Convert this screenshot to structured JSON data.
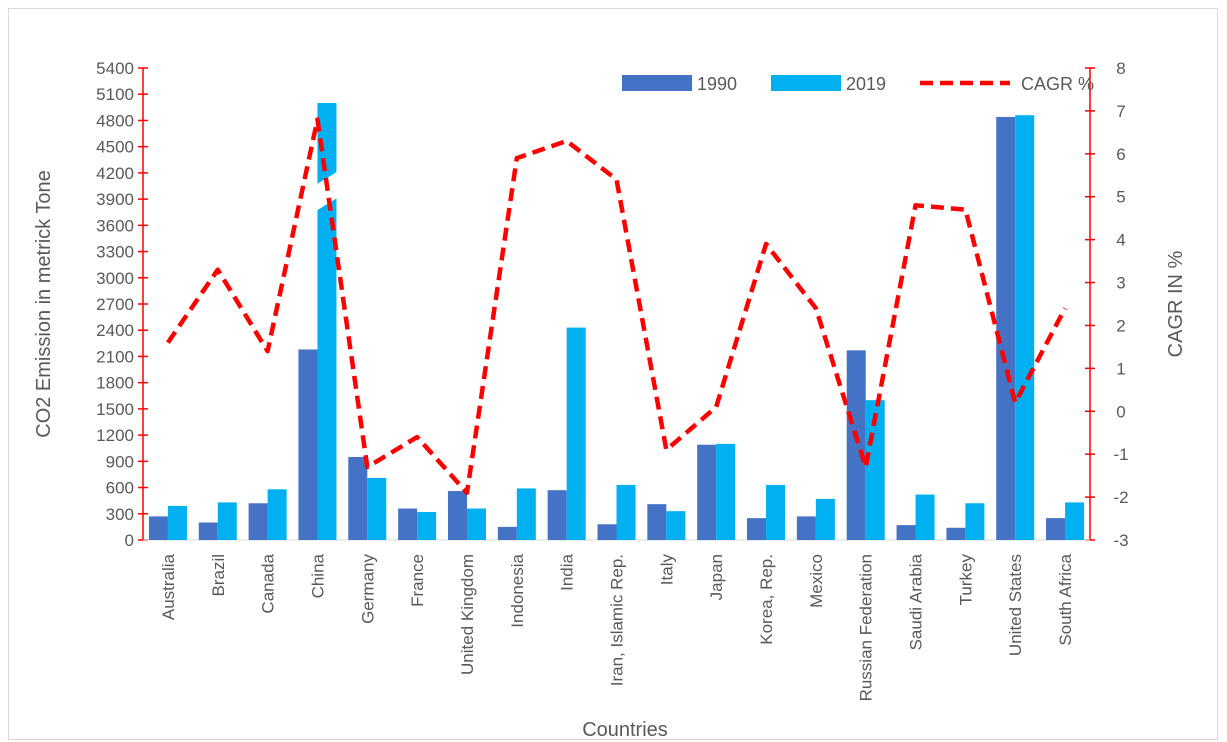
{
  "chart_data": {
    "type": "bar",
    "categories": [
      "Australia",
      "Brazil",
      "Canada",
      "China",
      "Germany",
      "France",
      "United Kingdom",
      "Indonesia",
      "India",
      "Iran, Islamic Rep.",
      "Italy",
      "Japan",
      "Korea, Rep.",
      "Mexico",
      "Russian Federation",
      "Saudi Arabia",
      "Turkey",
      "United States",
      "South Africa"
    ],
    "series": [
      {
        "name": "1990",
        "type": "bar",
        "axis": "left",
        "color": "#4472C4",
        "values": [
          270,
          200,
          420,
          2180,
          950,
          360,
          560,
          150,
          570,
          180,
          410,
          1090,
          250,
          270,
          2170,
          170,
          140,
          4840,
          250
        ]
      },
      {
        "name": "2019",
        "type": "bar",
        "axis": "left",
        "color": "#00B0F0",
        "values": [
          390,
          430,
          580,
          5000,
          710,
          320,
          360,
          590,
          2430,
          630,
          330,
          1100,
          630,
          470,
          1600,
          520,
          420,
          4860,
          430
        ]
      },
      {
        "name": "CAGR %",
        "type": "line",
        "axis": "right",
        "color": "#FF0000",
        "dash": "dashed",
        "values": [
          1.6,
          3.3,
          1.4,
          6.8,
          -1.3,
          -0.6,
          -1.9,
          5.9,
          6.3,
          5.4,
          -0.9,
          0.1,
          3.9,
          2.4,
          -1.3,
          4.8,
          4.7,
          0.2,
          2.4
        ]
      }
    ],
    "xlabel": "Countries",
    "ylabel": "CO2 Emission in metrick Tone",
    "y2label": "CAGR IN  %",
    "yticks": [
      0,
      300,
      600,
      900,
      1200,
      1500,
      1800,
      2100,
      2400,
      2700,
      3000,
      3300,
      3600,
      3900,
      4200,
      4500,
      4800,
      5100,
      5400
    ],
    "ylim": [
      0,
      5400
    ],
    "y2ticks": [
      -3,
      -2,
      -1,
      0,
      1,
      2,
      3,
      4,
      5,
      6,
      7,
      8
    ],
    "y2lim": [
      -3,
      8
    ],
    "grid": false,
    "legend_position": "top-right",
    "axis_break": "China 2019 bar"
  }
}
